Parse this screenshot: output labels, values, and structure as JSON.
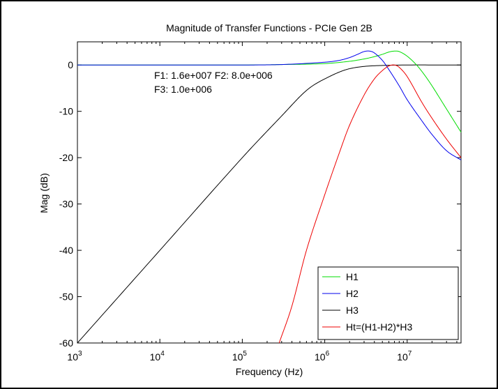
{
  "chart_data": {
    "type": "line",
    "title": "Magnitude of Transfer Functions - PCIe Gen 2B",
    "xlabel": "Frequency (Hz)",
    "ylabel": "Mag (dB)",
    "xscale": "log",
    "xlim": [
      1000,
      45000000
    ],
    "ylim": [
      -60,
      5
    ],
    "xticks": [
      {
        "v": 1000,
        "base": "10",
        "exp": "3"
      },
      {
        "v": 10000,
        "base": "10",
        "exp": "4"
      },
      {
        "v": 100000,
        "base": "10",
        "exp": "5"
      },
      {
        "v": 1000000,
        "base": "10",
        "exp": "6"
      },
      {
        "v": 10000000,
        "base": "10",
        "exp": "7"
      }
    ],
    "yticks": [
      {
        "v": 0,
        "label": "0"
      },
      {
        "v": -10,
        "label": "-10"
      },
      {
        "v": -20,
        "label": "-20"
      },
      {
        "v": -30,
        "label": "-30"
      },
      {
        "v": -40,
        "label": "-40"
      },
      {
        "v": -50,
        "label": "-50"
      },
      {
        "v": -60,
        "label": "-60"
      }
    ],
    "annotations": [
      "F1: 1.6e+007 F2: 8.0e+006",
      "F3: 1.0e+006"
    ],
    "grid": false,
    "legend_position": "bottom-right",
    "series": [
      {
        "name": "H1",
        "color": "#00dd00",
        "x": [
          1000,
          100000,
          300000,
          1000000,
          2000000,
          3000000,
          4000000,
          5000000,
          6000000,
          7000000,
          8000000,
          10000000,
          13000000,
          16000000,
          20000000,
          30000000,
          45000000
        ],
        "y": [
          0,
          0,
          0.1,
          0.3,
          0.8,
          1.3,
          1.8,
          2.3,
          2.8,
          3.0,
          2.9,
          1.9,
          0,
          -2.0,
          -4.5,
          -9.5,
          -14.5
        ]
      },
      {
        "name": "H2",
        "color": "#0000ee",
        "x": [
          1000,
          100000,
          300000,
          1000000,
          1500000,
          2000000,
          2500000,
          3000000,
          3500000,
          4000000,
          5000000,
          6000000,
          8000000,
          10000000,
          15000000,
          20000000,
          30000000,
          45000000
        ],
        "y": [
          0,
          0,
          0.1,
          0.6,
          1.0,
          1.6,
          2.3,
          2.9,
          3.0,
          2.6,
          1.0,
          -1.0,
          -4.5,
          -7.5,
          -12.0,
          -15.0,
          -18.5,
          -20.5
        ]
      },
      {
        "name": "H3",
        "color": "#000000",
        "x": [
          1000,
          10000,
          100000,
          300000,
          600000,
          1000000,
          2000000,
          5000000,
          45000000
        ],
        "y": [
          -60,
          -40,
          -20,
          -11,
          -5.5,
          -3,
          -0.8,
          -0.1,
          0
        ]
      },
      {
        "name": "Ht=(H1-H2)*H3",
        "color": "#ee0000",
        "x": [
          280000,
          400000,
          600000,
          1000000,
          1500000,
          2000000,
          3000000,
          4000000,
          5000000,
          6000000,
          7000000,
          8000000,
          10000000,
          15000000,
          20000000,
          30000000,
          45000000
        ],
        "y": [
          -60,
          -52,
          -40,
          -28,
          -19,
          -13,
          -6.5,
          -3,
          -1.2,
          -0.2,
          0,
          -0.5,
          -2.5,
          -8,
          -11.5,
          -16,
          -20
        ]
      }
    ]
  }
}
